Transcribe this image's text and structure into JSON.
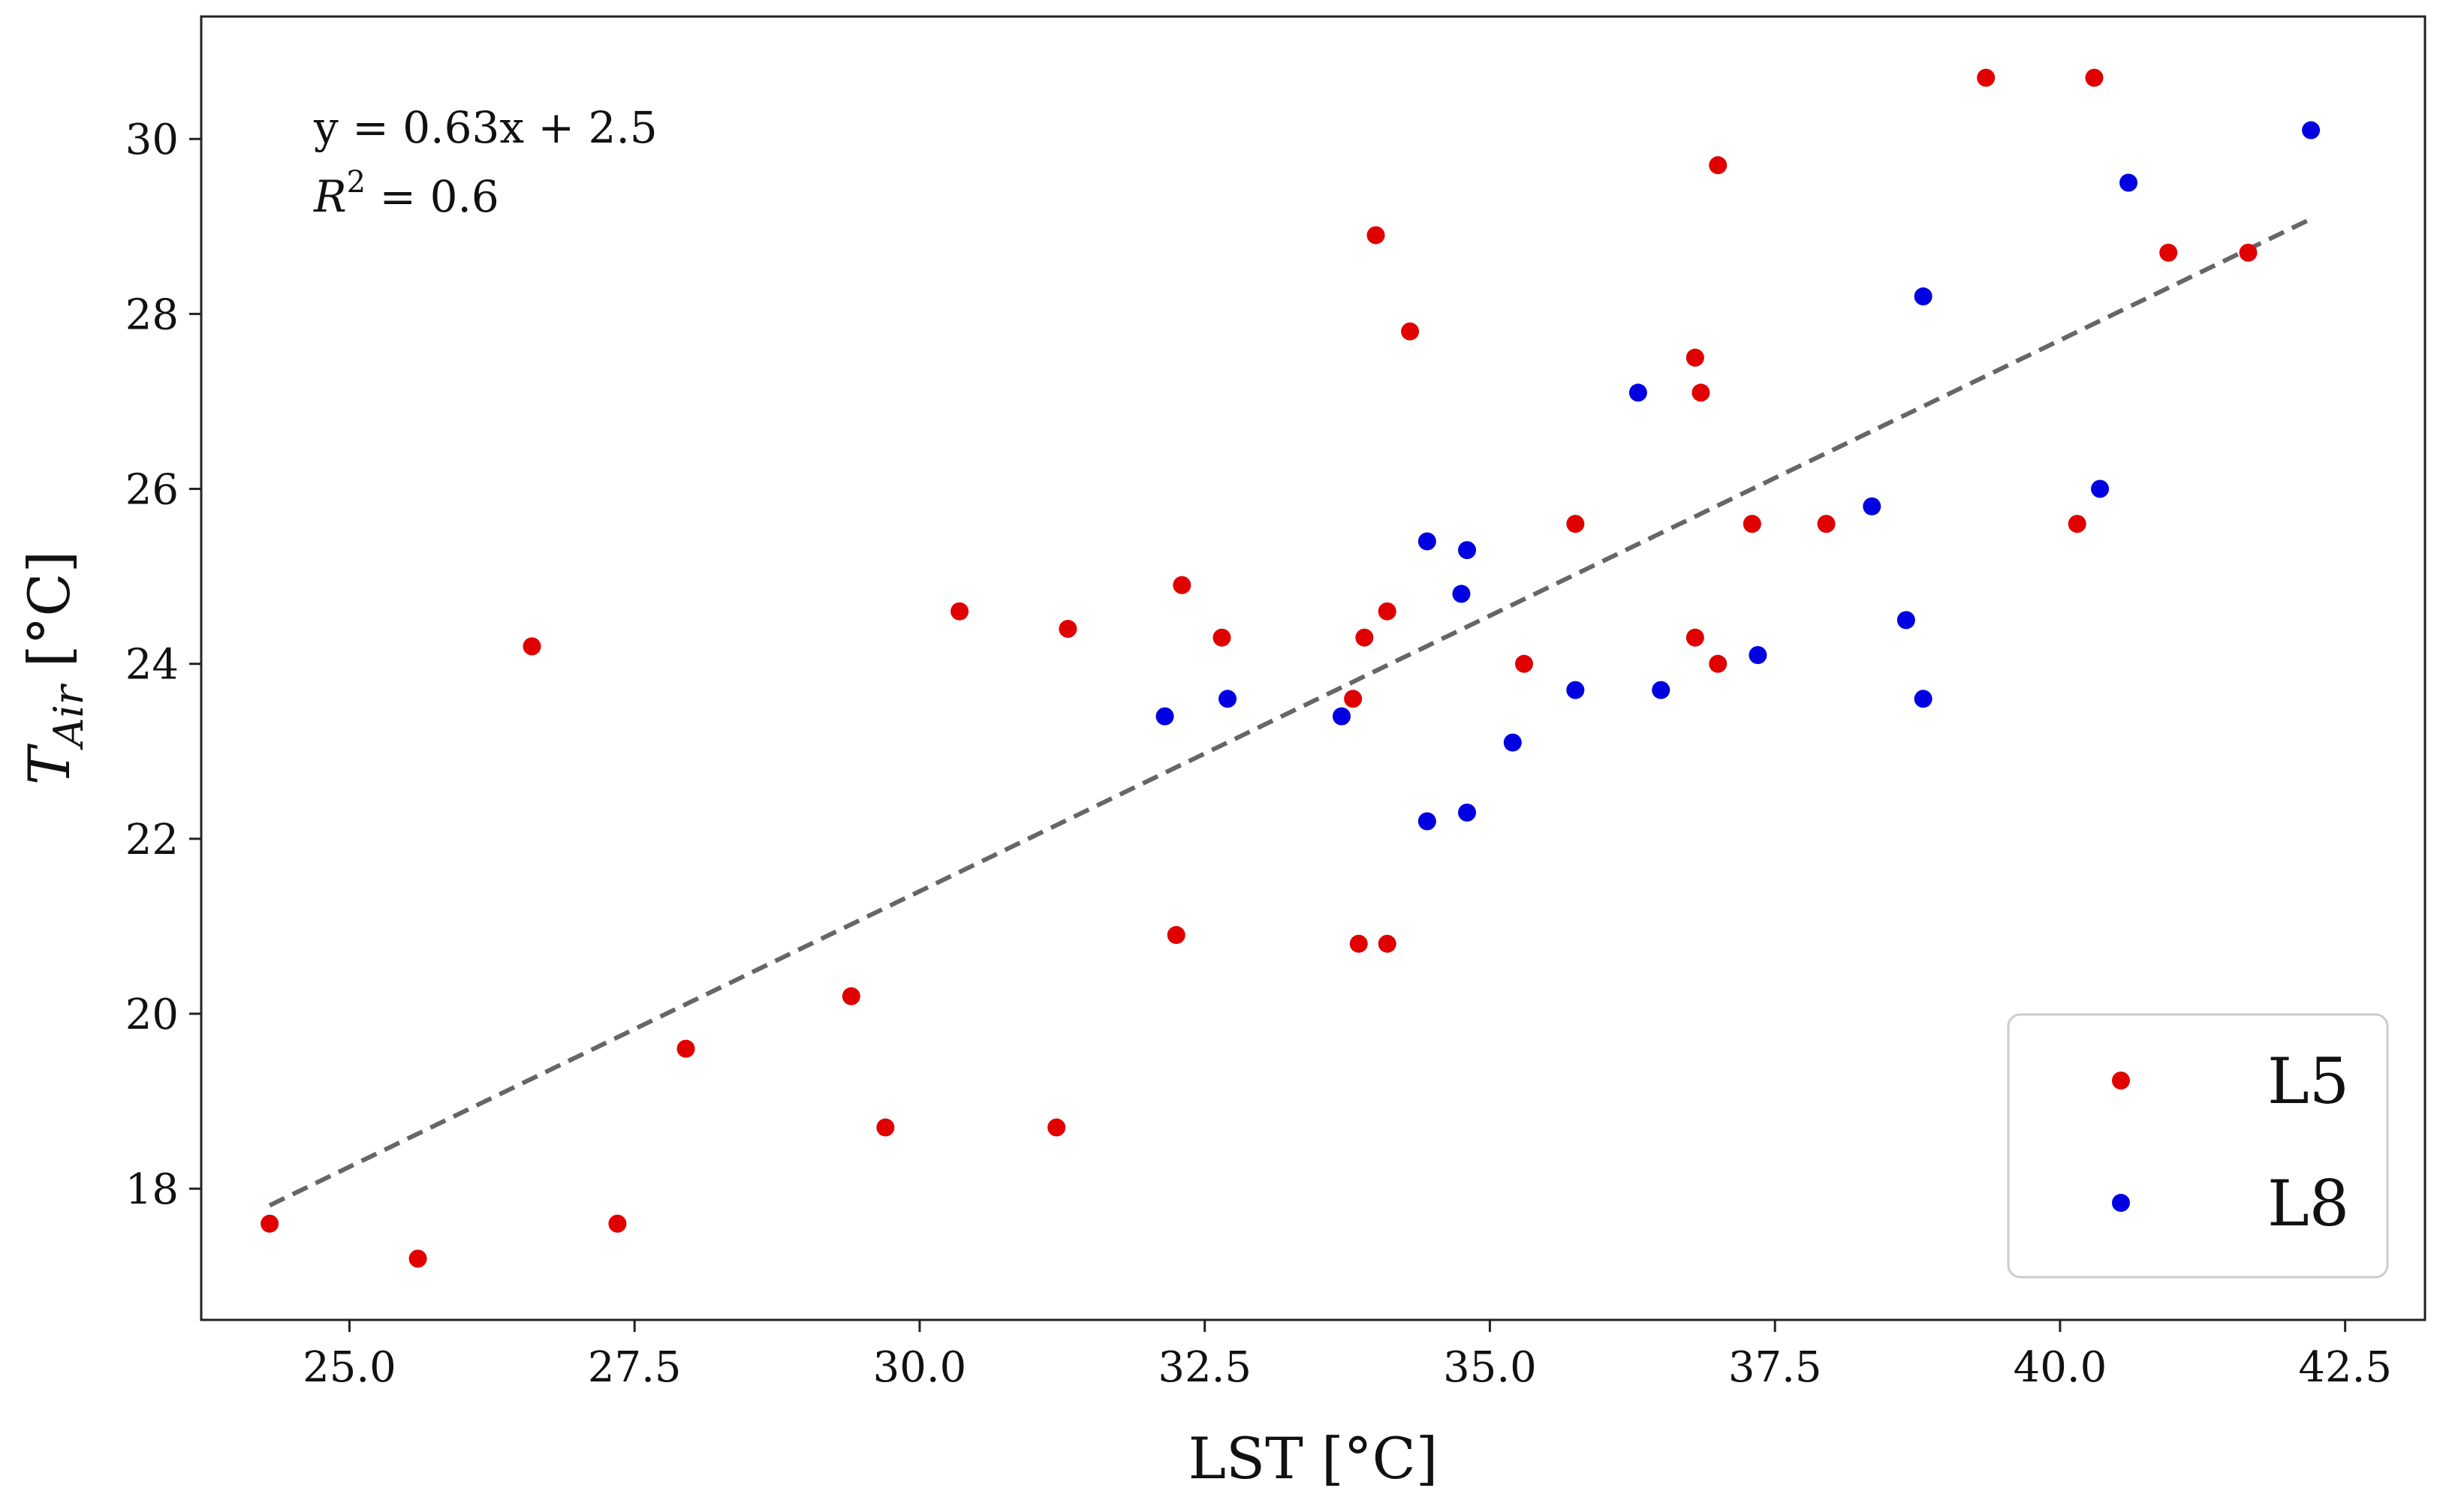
{
  "chart_data": {
    "type": "scatter",
    "title": "",
    "xlabel": "LST [°C]",
    "ylabel": {
      "main": "T",
      "sub": "Air",
      "unit": " [°C]"
    },
    "xlim": [
      23.7,
      43.2
    ],
    "ylim": [
      16.5,
      31.4
    ],
    "xticks": [
      25.0,
      27.5,
      30.0,
      32.5,
      35.0,
      37.5,
      40.0,
      42.5
    ],
    "xtick_labels": [
      "25.0",
      "27.5",
      "30.0",
      "32.5",
      "35.0",
      "37.5",
      "40.0",
      "42.5"
    ],
    "yticks": [
      18,
      20,
      22,
      24,
      26,
      28,
      30
    ],
    "ytick_labels": [
      "18",
      "20",
      "22",
      "24",
      "26",
      "28",
      "30"
    ],
    "grid": false,
    "legend_position": "bottom-right",
    "colors": {
      "L5": "#e00000",
      "L8": "#0000e0",
      "fit": "#666666",
      "axis": "#222222"
    },
    "series": [
      {
        "name": "L5",
        "color": "#e00000",
        "points": [
          [
            24.3,
            17.6
          ],
          [
            25.6,
            17.2
          ],
          [
            26.6,
            24.2
          ],
          [
            27.35,
            17.6
          ],
          [
            27.95,
            19.6
          ],
          [
            29.4,
            20.2
          ],
          [
            29.7,
            18.7
          ],
          [
            30.35,
            24.6
          ],
          [
            31.2,
            18.7
          ],
          [
            31.3,
            24.4
          ],
          [
            32.25,
            20.9
          ],
          [
            32.3,
            24.9
          ],
          [
            32.65,
            24.3
          ],
          [
            33.8,
            23.6
          ],
          [
            33.85,
            20.8
          ],
          [
            33.9,
            24.3
          ],
          [
            34.0,
            28.9
          ],
          [
            34.1,
            20.8
          ],
          [
            34.1,
            24.6
          ],
          [
            34.3,
            27.8
          ],
          [
            35.3,
            24.0
          ],
          [
            35.75,
            25.6
          ],
          [
            36.8,
            24.3
          ],
          [
            36.8,
            27.5
          ],
          [
            36.85,
            27.1
          ],
          [
            37.0,
            29.7
          ],
          [
            37.0,
            24.0
          ],
          [
            37.3,
            25.6
          ],
          [
            37.95,
            25.6
          ],
          [
            39.35,
            30.7
          ],
          [
            40.15,
            25.6
          ],
          [
            40.3,
            30.7
          ],
          [
            40.95,
            28.7
          ],
          [
            41.65,
            28.7
          ]
        ]
      },
      {
        "name": "L8",
        "color": "#0000e0",
        "points": [
          [
            32.15,
            23.4
          ],
          [
            32.7,
            23.6
          ],
          [
            33.7,
            23.4
          ],
          [
            34.45,
            22.2
          ],
          [
            34.45,
            25.4
          ],
          [
            34.75,
            24.8
          ],
          [
            34.8,
            25.3
          ],
          [
            34.8,
            22.3
          ],
          [
            35.2,
            23.1
          ],
          [
            35.75,
            23.7
          ],
          [
            36.3,
            27.1
          ],
          [
            36.5,
            23.7
          ],
          [
            37.35,
            24.1
          ],
          [
            38.35,
            25.8
          ],
          [
            38.65,
            24.5
          ],
          [
            38.8,
            28.2
          ],
          [
            38.8,
            23.6
          ],
          [
            40.35,
            26.0
          ],
          [
            40.6,
            29.5
          ],
          [
            42.2,
            30.1
          ]
        ]
      }
    ],
    "fit_line": {
      "slope": 0.63,
      "intercept": 2.5,
      "x_range": [
        24.3,
        42.2
      ],
      "style": "dashed"
    },
    "annotations": {
      "equation": "y = 0.63x + 2.5",
      "r2_symbol": "R",
      "r2_exp": "2",
      "r2_value": " = 0.6"
    },
    "legend": [
      {
        "label": "L5",
        "color": "#e00000"
      },
      {
        "label": "L8",
        "color": "#0000e0"
      }
    ]
  }
}
